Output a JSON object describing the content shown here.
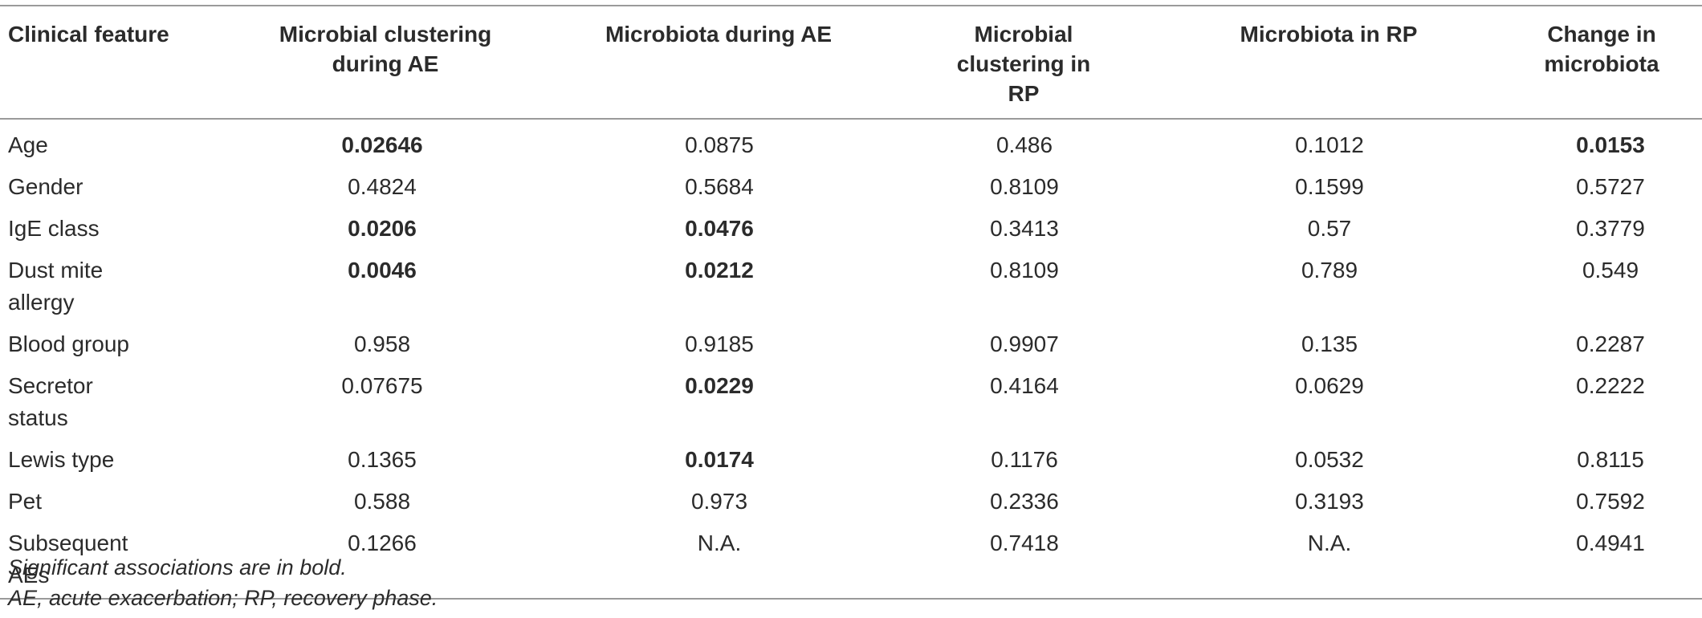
{
  "table": {
    "headers": [
      "Clinical feature",
      "Microbial clustering during AE",
      "Microbiota during AE",
      "Microbial clustering in RP",
      "Microbiota in RP",
      "Change in microbiota"
    ],
    "rows": [
      {
        "feature": "Age",
        "values": [
          "0.02646",
          "0.0875",
          "0.486",
          "0.1012",
          "0.0153"
        ],
        "bold": [
          true,
          false,
          false,
          false,
          true
        ]
      },
      {
        "feature": "Gender",
        "values": [
          "0.4824",
          "0.5684",
          "0.8109",
          "0.1599",
          "0.5727"
        ],
        "bold": [
          false,
          false,
          false,
          false,
          false
        ]
      },
      {
        "feature": "IgE class",
        "values": [
          "0.0206",
          "0.0476",
          "0.3413",
          "0.57",
          "0.3779"
        ],
        "bold": [
          true,
          true,
          false,
          false,
          false
        ]
      },
      {
        "feature": "Dust mite allergy",
        "values": [
          "0.0046",
          "0.0212",
          "0.8109",
          "0.789",
          "0.549"
        ],
        "bold": [
          true,
          true,
          false,
          false,
          false
        ]
      },
      {
        "feature": "Blood group",
        "values": [
          "0.958",
          "0.9185",
          "0.9907",
          "0.135",
          "0.2287"
        ],
        "bold": [
          false,
          false,
          false,
          false,
          false
        ]
      },
      {
        "feature": "Secretor status",
        "values": [
          "0.07675",
          "0.0229",
          "0.4164",
          "0.0629",
          "0.2222"
        ],
        "bold": [
          false,
          true,
          false,
          false,
          false
        ]
      },
      {
        "feature": "Lewis type",
        "values": [
          "0.1365",
          "0.0174",
          "0.1176",
          "0.0532",
          "0.8115"
        ],
        "bold": [
          false,
          true,
          false,
          false,
          false
        ]
      },
      {
        "feature": "Pet",
        "values": [
          "0.588",
          "0.973",
          "0.2336",
          "0.3193",
          "0.7592"
        ],
        "bold": [
          false,
          false,
          false,
          false,
          false
        ]
      },
      {
        "feature": "Subsequent AEs",
        "values": [
          "0.1266",
          "N.A.",
          "0.7418",
          "N.A.",
          "0.4941"
        ],
        "bold": [
          false,
          false,
          false,
          false,
          false
        ]
      }
    ]
  },
  "footnotes": {
    "note1": "Significant associations are in bold.",
    "note2": "AE, acute exacerbation; RP, recovery phase."
  }
}
